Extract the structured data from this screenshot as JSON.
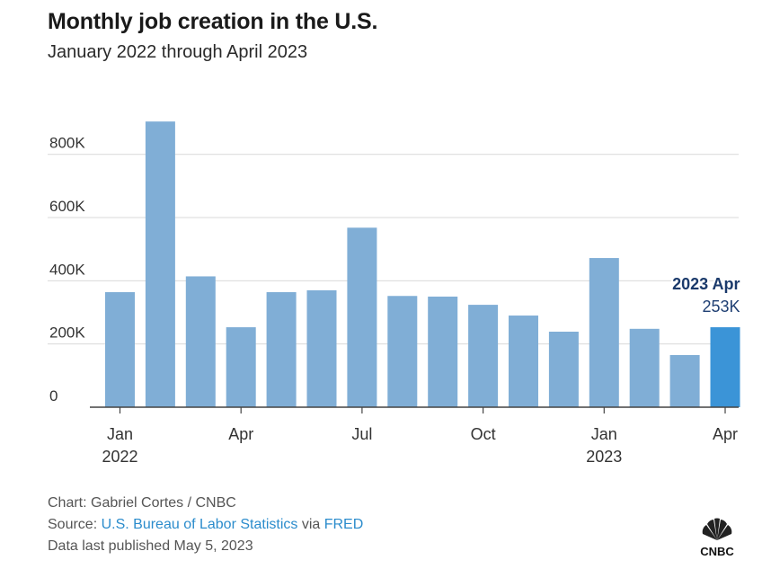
{
  "title": "Monthly job creation in the U.S.",
  "subtitle": "January 2022 through April 2023",
  "chart_data": {
    "type": "bar",
    "categories": [
      "2022-01",
      "2022-02",
      "2022-03",
      "2022-04",
      "2022-05",
      "2022-06",
      "2022-07",
      "2022-08",
      "2022-09",
      "2022-10",
      "2022-11",
      "2022-12",
      "2023-01",
      "2023-02",
      "2023-03",
      "2023-04"
    ],
    "values": [
      364,
      904,
      414,
      253,
      364,
      370,
      568,
      352,
      350,
      324,
      290,
      239,
      472,
      248,
      165,
      253
    ],
    "units": "thousands of jobs",
    "y_tick_labels": [
      "0",
      "200K",
      "400K",
      "600K",
      "800K"
    ],
    "y_ticks": [
      0,
      200,
      400,
      600,
      800
    ],
    "ylim": [
      0,
      950
    ],
    "x_tick_labels": [
      {
        "index": 0,
        "label": "Jan",
        "year": "2022"
      },
      {
        "index": 3,
        "label": "Apr",
        "year": ""
      },
      {
        "index": 6,
        "label": "Jul",
        "year": ""
      },
      {
        "index": 9,
        "label": "Oct",
        "year": ""
      },
      {
        "index": 12,
        "label": "Jan",
        "year": "2023"
      },
      {
        "index": 15,
        "label": "Apr",
        "year": ""
      }
    ],
    "annotation": {
      "index": 15,
      "title": "2023 Apr",
      "value_label": "253K"
    },
    "grid": true,
    "colors": {
      "bar": "#80aed6",
      "highlight": "#3b94d7",
      "annotation_title": "#1b3a6b",
      "annotation_value": "#1f3f73",
      "grid": "#d9d9d9",
      "axis": "#444444"
    }
  },
  "footer": {
    "chart_credit": "Chart: Gabriel Cortes / CNBC",
    "source_prefix": "Source: ",
    "source_link_1": "U.S. Bureau of Labor Statistics",
    "source_mid": " via ",
    "source_link_2": "FRED",
    "published": "Data last published May 5, 2023"
  },
  "logo": {
    "icon": "nbc-peacock-icon",
    "text": "CNBC"
  }
}
